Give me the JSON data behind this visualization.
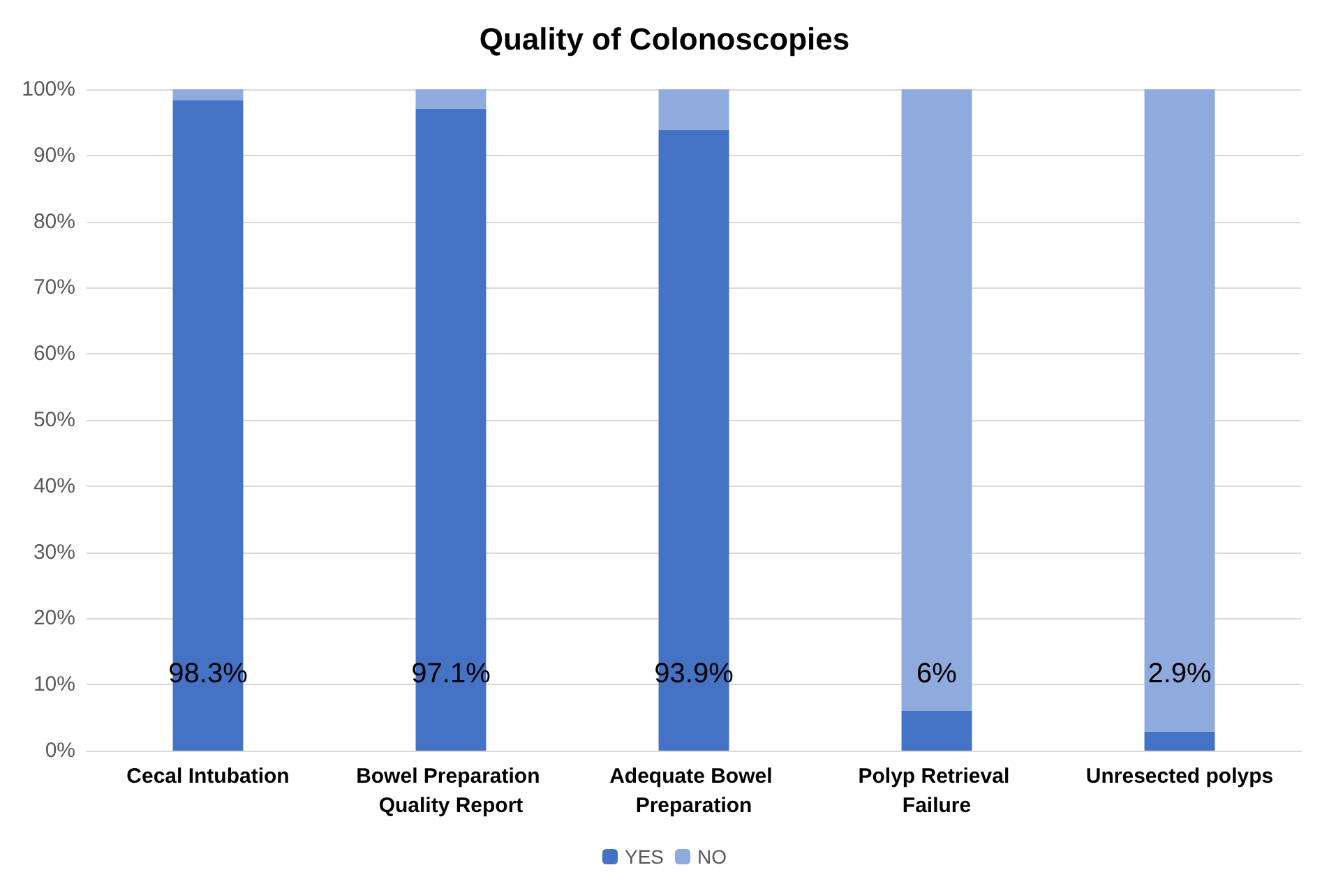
{
  "chart_data": {
    "type": "bar",
    "title": "Quality of Colonoscopies",
    "stacked": true,
    "grid": "y",
    "legend": "bottom",
    "categories": [
      "Cecal Intubation",
      "Bowel Preparation Quality Report",
      "Adequate Bowel Preparation",
      "Polyp Retrieval Failure",
      "Unresected polyps"
    ],
    "series": [
      {
        "name": "YES",
        "color": "#4472c4",
        "values": [
          98.3,
          97.1,
          93.9,
          6,
          2.9
        ],
        "value_labels": [
          "98.3%",
          "97.1%",
          "93.9%",
          "6%",
          "2.9%"
        ]
      },
      {
        "name": "NO",
        "color": "#8faadc",
        "values": [
          1.7,
          2.9,
          6.1,
          94,
          97.1
        ]
      }
    ],
    "ylim": [
      0,
      100
    ],
    "yticks": [
      {
        "value": 0,
        "label": "0%"
      },
      {
        "value": 10,
        "label": "10%"
      },
      {
        "value": 20,
        "label": "20%"
      },
      {
        "value": 30,
        "label": "30%"
      },
      {
        "value": 40,
        "label": "40%"
      },
      {
        "value": 50,
        "label": "50%"
      },
      {
        "value": 60,
        "label": "60%"
      },
      {
        "value": 70,
        "label": "70%"
      },
      {
        "value": 80,
        "label": "80%"
      },
      {
        "value": 90,
        "label": "90%"
      },
      {
        "value": 100,
        "label": "100%"
      }
    ]
  }
}
